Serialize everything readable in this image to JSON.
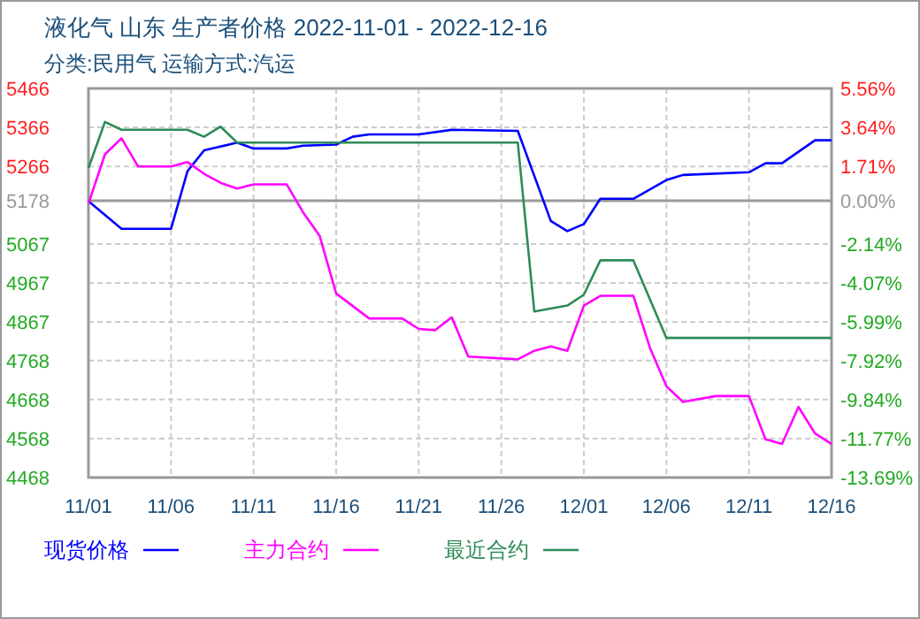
{
  "chart_data": {
    "type": "line",
    "title": "液化气 山东 生产者价格 2022-11-01 - 2022-12-16",
    "subtitle": "分类:民用气 运输方式:汽运",
    "xlim": [
      "2022-11-01",
      "2022-12-16"
    ],
    "xticks": [
      {
        "value": "2022-11-01",
        "label": "11/01"
      },
      {
        "value": "2022-11-06",
        "label": "11/06"
      },
      {
        "value": "2022-11-11",
        "label": "11/11"
      },
      {
        "value": "2022-11-16",
        "label": "11/16"
      },
      {
        "value": "2022-11-21",
        "label": "11/21"
      },
      {
        "value": "2022-11-26",
        "label": "11/26"
      },
      {
        "value": "2022-12-01",
        "label": "12/01"
      },
      {
        "value": "2022-12-06",
        "label": "12/06"
      },
      {
        "value": "2022-12-11",
        "label": "12/11"
      },
      {
        "value": "2022-12-16",
        "label": "12/16"
      }
    ],
    "ylim": [
      4468,
      5466
    ],
    "yticks": [
      5466,
      5366,
      5266,
      5178,
      5067,
      4967,
      4867,
      4768,
      4668,
      4568,
      4468
    ],
    "y2lim": [
      -13.69,
      5.56
    ],
    "y2ticks": [
      {
        "value": 5.56,
        "label": "5.56%"
      },
      {
        "value": 3.64,
        "label": "3.64%"
      },
      {
        "value": 1.71,
        "label": "1.71%"
      },
      {
        "value": 0,
        "label": "0.00%"
      },
      {
        "value": -2.14,
        "label": "-2.14%"
      },
      {
        "value": -4.07,
        "label": "-4.07%"
      },
      {
        "value": -5.99,
        "label": "-5.99%"
      },
      {
        "value": -7.92,
        "label": "-7.92%"
      },
      {
        "value": -9.84,
        "label": "-9.84%"
      },
      {
        "value": -11.77,
        "label": "-11.77%"
      },
      {
        "value": -13.69,
        "label": "-13.69%"
      }
    ],
    "ref_lines": [
      {
        "axis": "y",
        "value": 5178,
        "color": "#999999",
        "line_style": "solid"
      }
    ],
    "grid": true,
    "legend": "bottom",
    "line_style": "solid",
    "marker": "none",
    "series": [
      {
        "name": "现货价格",
        "color": "#0000ff",
        "x": [
          "2022-11-01",
          "2022-11-03",
          "2022-11-06",
          "2022-11-07",
          "2022-11-08",
          "2022-11-10",
          "2022-11-11",
          "2022-11-13",
          "2022-11-14",
          "2022-11-16",
          "2022-11-17",
          "2022-11-18",
          "2022-11-21",
          "2022-11-23",
          "2022-11-27",
          "2022-11-29",
          "2022-11-30",
          "2022-12-01",
          "2022-12-02",
          "2022-12-04",
          "2022-12-06",
          "2022-12-07",
          "2022-12-11",
          "2022-12-12",
          "2022-12-13",
          "2022-12-15",
          "2022-12-16"
        ],
        "values": [
          5177,
          5106,
          5106,
          5254,
          5307,
          5327,
          5312,
          5312,
          5319,
          5322,
          5342,
          5348,
          5348,
          5360,
          5357,
          5126,
          5100,
          5118,
          5183,
          5183,
          5231,
          5244,
          5251,
          5274,
          5274,
          5333,
          5333
        ]
      },
      {
        "name": "主力合约",
        "color": "#ff00ff",
        "x": [
          "2022-11-01",
          "2022-11-02",
          "2022-11-03",
          "2022-11-04",
          "2022-11-06",
          "2022-11-07",
          "2022-11-08",
          "2022-11-09",
          "2022-11-10",
          "2022-11-11",
          "2022-11-13",
          "2022-11-14",
          "2022-11-15",
          "2022-11-16",
          "2022-11-18",
          "2022-11-20",
          "2022-11-21",
          "2022-11-22",
          "2022-11-23",
          "2022-11-24",
          "2022-11-27",
          "2022-11-28",
          "2022-11-29",
          "2022-11-30",
          "2022-12-01",
          "2022-12-02",
          "2022-12-04",
          "2022-12-05",
          "2022-12-06",
          "2022-12-07",
          "2022-12-09",
          "2022-12-11",
          "2022-12-12",
          "2022-12-13",
          "2022-12-14",
          "2022-12-15",
          "2022-12-16"
        ],
        "values": [
          5171,
          5297,
          5338,
          5266,
          5266,
          5277,
          5247,
          5224,
          5209,
          5220,
          5220,
          5148,
          5088,
          4940,
          4876,
          4876,
          4849,
          4846,
          4879,
          4778,
          4771,
          4793,
          4804,
          4793,
          4909,
          4934,
          4934,
          4801,
          4702,
          4662,
          4677,
          4677,
          4566,
          4554,
          4649,
          4581,
          4554
        ]
      },
      {
        "name": "最近合约",
        "color": "#2e8b57",
        "x": [
          "2022-11-01",
          "2022-11-02",
          "2022-11-03",
          "2022-11-07",
          "2022-11-08",
          "2022-11-09",
          "2022-11-10",
          "2022-11-27",
          "2022-11-28",
          "2022-11-30",
          "2022-12-01",
          "2022-12-02",
          "2022-12-04",
          "2022-12-06",
          "2022-12-16"
        ],
        "values": [
          5262,
          5380,
          5360,
          5360,
          5342,
          5368,
          5327,
          5327,
          4894,
          4909,
          4937,
          5025,
          5025,
          4826,
          4826
        ]
      }
    ]
  }
}
